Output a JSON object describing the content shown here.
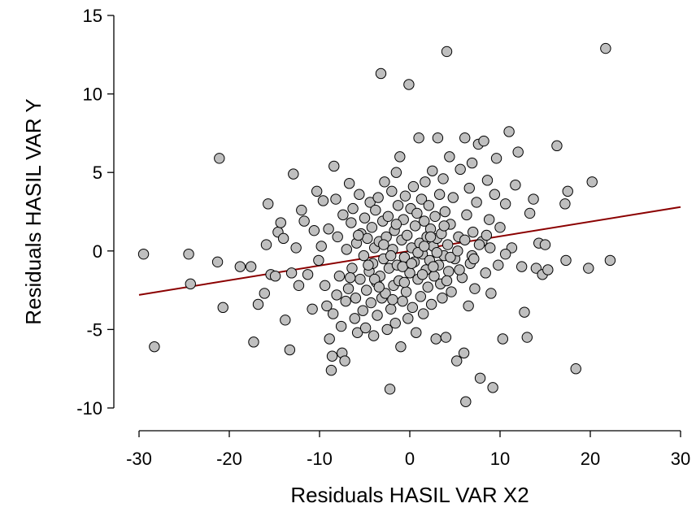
{
  "chart_data": {
    "type": "scatter",
    "title": "",
    "xlabel": "Residuals HASIL VAR X2",
    "ylabel": "Residuals HASIL VAR Y",
    "xlim": [
      -30,
      30
    ],
    "ylim": [
      -10,
      15
    ],
    "xticks": [
      -30,
      -20,
      -10,
      0,
      10,
      20,
      30
    ],
    "yticks": [
      -10,
      -5,
      0,
      5,
      10,
      15
    ],
    "grid": false,
    "legend": "none",
    "colors": {
      "point_fill": "#bfbfbf",
      "point_stroke": "#000000",
      "line": "#8b0000"
    },
    "regression_line": {
      "x": [
        -30,
        30
      ],
      "y": [
        -2.8,
        2.8
      ]
    },
    "points": [
      [
        -29.5,
        -0.2
      ],
      [
        -28.3,
        -6.1
      ],
      [
        -24.5,
        -0.2
      ],
      [
        -24.3,
        -2.1
      ],
      [
        -21.3,
        -0.7
      ],
      [
        -21.1,
        5.9
      ],
      [
        -20.7,
        -3.6
      ],
      [
        -18.8,
        -1.0
      ],
      [
        -17.6,
        -1.0
      ],
      [
        -17.3,
        -5.8
      ],
      [
        -16.8,
        -3.4
      ],
      [
        -16.1,
        -2.7
      ],
      [
        -15.9,
        0.4
      ],
      [
        -15.7,
        3.0
      ],
      [
        -15.4,
        -1.5
      ],
      [
        -14.9,
        -1.6
      ],
      [
        -14.6,
        1.2
      ],
      [
        -14.3,
        1.8
      ],
      [
        -14.0,
        0.8
      ],
      [
        -13.8,
        -4.4
      ],
      [
        -13.3,
        -6.3
      ],
      [
        -13.1,
        -1.4
      ],
      [
        -12.9,
        4.9
      ],
      [
        -12.6,
        0.2
      ],
      [
        -12.3,
        -2.2
      ],
      [
        -12.0,
        2.6
      ],
      [
        -11.7,
        1.9
      ],
      [
        -11.3,
        -1.5
      ],
      [
        -10.8,
        -3.7
      ],
      [
        -10.6,
        1.3
      ],
      [
        -10.3,
        3.8
      ],
      [
        -10.1,
        -0.6
      ],
      [
        -9.8,
        0.3
      ],
      [
        -9.6,
        3.2
      ],
      [
        -9.4,
        -2.2
      ],
      [
        -9.2,
        -3.5
      ],
      [
        -9.0,
        1.4
      ],
      [
        -8.9,
        -5.6
      ],
      [
        -8.7,
        -7.6
      ],
      [
        -8.6,
        -6.7
      ],
      [
        -8.5,
        -4.0
      ],
      [
        -8.4,
        5.4
      ],
      [
        -8.2,
        3.3
      ],
      [
        -8.1,
        -2.8
      ],
      [
        -8.0,
        0.9
      ],
      [
        -7.8,
        -1.6
      ],
      [
        -7.6,
        -4.8
      ],
      [
        -7.5,
        -6.5
      ],
      [
        -7.4,
        2.3
      ],
      [
        -7.2,
        -7.0
      ],
      [
        -7.1,
        -3.2
      ],
      [
        -7.0,
        0.1
      ],
      [
        -6.8,
        -2.4
      ],
      [
        -6.7,
        4.3
      ],
      [
        -6.5,
        1.8
      ],
      [
        -6.4,
        -1.1
      ],
      [
        -6.3,
        2.7
      ],
      [
        -6.1,
        -4.3
      ],
      [
        -6.0,
        -3.0
      ],
      [
        -5.9,
        0.5
      ],
      [
        -5.8,
        -5.2
      ],
      [
        -5.6,
        3.6
      ],
      [
        -5.5,
        -1.8
      ],
      [
        -5.4,
        1.1
      ],
      [
        -5.2,
        -3.8
      ],
      [
        -5.1,
        -0.3
      ],
      [
        -5.0,
        2.1
      ],
      [
        -4.9,
        -4.9
      ],
      [
        -4.8,
        -2.5
      ],
      [
        -4.7,
        0.8
      ],
      [
        -4.5,
        -1.3
      ],
      [
        -4.4,
        3.1
      ],
      [
        -4.3,
        -3.3
      ],
      [
        -4.2,
        1.5
      ],
      [
        -4.1,
        -0.8
      ],
      [
        -4.0,
        -5.4
      ],
      [
        -3.9,
        0.2
      ],
      [
        -3.8,
        2.6
      ],
      [
        -3.7,
        -2.0
      ],
      [
        -3.6,
        -4.1
      ],
      [
        -3.5,
        3.4
      ],
      [
        -3.4,
        0.6
      ],
      [
        -3.3,
        -1.6
      ],
      [
        -3.2,
        11.3
      ],
      [
        -3.1,
        -3.0
      ],
      [
        -3.0,
        1.9
      ],
      [
        -2.9,
        -0.5
      ],
      [
        -2.8,
        4.4
      ],
      [
        -2.7,
        -2.7
      ],
      [
        -2.6,
        0.9
      ],
      [
        -2.5,
        -5.0
      ],
      [
        -2.4,
        2.2
      ],
      [
        -2.3,
        -1.1
      ],
      [
        -2.2,
        -8.8
      ],
      [
        -2.1,
        -3.7
      ],
      [
        -2.0,
        3.8
      ],
      [
        -1.9,
        0.1
      ],
      [
        -1.8,
        -2.2
      ],
      [
        -1.7,
        1.3
      ],
      [
        -1.6,
        -4.6
      ],
      [
        -1.5,
        5.0
      ],
      [
        -1.4,
        -0.9
      ],
      [
        -1.3,
        2.9
      ],
      [
        -1.2,
        -1.9
      ],
      [
        -1.1,
        6.0
      ],
      [
        -1.0,
        -6.1
      ],
      [
        -0.9,
        0.7
      ],
      [
        -0.8,
        -3.2
      ],
      [
        -0.7,
        2.0
      ],
      [
        -0.6,
        -0.4
      ],
      [
        -0.5,
        3.5
      ],
      [
        -0.4,
        -2.6
      ],
      [
        -0.3,
        1.0
      ],
      [
        -0.2,
        -4.3
      ],
      [
        -0.1,
        10.6
      ],
      [
        0.0,
        -1.4
      ],
      [
        0.1,
        2.7
      ],
      [
        0.2,
        0.2
      ],
      [
        0.3,
        -3.6
      ],
      [
        0.4,
        4.1
      ],
      [
        0.5,
        -0.7
      ],
      [
        0.6,
        1.6
      ],
      [
        0.7,
        -5.2
      ],
      [
        0.8,
        2.4
      ],
      [
        0.9,
        -1.8
      ],
      [
        1.0,
        7.2
      ],
      [
        1.1,
        0.5
      ],
      [
        1.2,
        -2.9
      ],
      [
        1.3,
        3.3
      ],
      [
        1.4,
        -0.2
      ],
      [
        1.5,
        -4.0
      ],
      [
        1.6,
        1.9
      ],
      [
        1.7,
        4.4
      ],
      [
        1.8,
        -1.2
      ],
      [
        1.9,
        0.9
      ],
      [
        2.0,
        -2.3
      ],
      [
        2.1,
        2.9
      ],
      [
        2.2,
        -0.6
      ],
      [
        2.3,
        1.4
      ],
      [
        2.4,
        -3.4
      ],
      [
        2.5,
        5.1
      ],
      [
        2.6,
        0.3
      ],
      [
        2.7,
        -1.6
      ],
      [
        2.8,
        2.2
      ],
      [
        2.9,
        -5.6
      ],
      [
        3.0,
        0.8
      ],
      [
        3.1,
        7.2
      ],
      [
        3.2,
        -0.9
      ],
      [
        3.3,
        3.6
      ],
      [
        3.4,
        -2.1
      ],
      [
        3.5,
        1.1
      ],
      [
        3.6,
        -3.0
      ],
      [
        3.7,
        4.6
      ],
      [
        3.8,
        -0.3
      ],
      [
        3.9,
        2.5
      ],
      [
        4.0,
        -5.5
      ],
      [
        4.1,
        12.7
      ],
      [
        4.2,
        0.4
      ],
      [
        4.3,
        -1.3
      ],
      [
        4.4,
        6.0
      ],
      [
        4.5,
        1.7
      ],
      [
        4.6,
        -2.6
      ],
      [
        4.8,
        3.4
      ],
      [
        5.0,
        -0.5
      ],
      [
        5.2,
        -7.0
      ],
      [
        5.4,
        0.9
      ],
      [
        5.6,
        5.2
      ],
      [
        5.8,
        -1.7
      ],
      [
        6.0,
        -6.5
      ],
      [
        6.1,
        7.2
      ],
      [
        6.2,
        -9.6
      ],
      [
        6.3,
        2.3
      ],
      [
        6.5,
        -3.5
      ],
      [
        6.6,
        4.0
      ],
      [
        6.7,
        -0.8
      ],
      [
        6.9,
        5.6
      ],
      [
        7.0,
        1.2
      ],
      [
        7.2,
        -2.4
      ],
      [
        7.4,
        3.1
      ],
      [
        7.6,
        6.8
      ],
      [
        7.8,
        -8.1
      ],
      [
        8.0,
        0.6
      ],
      [
        8.2,
        7.0
      ],
      [
        8.4,
        -1.4
      ],
      [
        8.6,
        4.5
      ],
      [
        8.8,
        2.0
      ],
      [
        9.0,
        -2.7
      ],
      [
        9.2,
        -8.7
      ],
      [
        9.4,
        3.6
      ],
      [
        9.6,
        5.9
      ],
      [
        9.8,
        -0.9
      ],
      [
        10.0,
        1.5
      ],
      [
        10.3,
        -5.6
      ],
      [
        10.6,
        3.0
      ],
      [
        11.0,
        7.6
      ],
      [
        11.3,
        0.2
      ],
      [
        11.7,
        4.2
      ],
      [
        12.0,
        6.3
      ],
      [
        12.4,
        -1.0
      ],
      [
        12.7,
        -3.9
      ],
      [
        13.0,
        -5.5
      ],
      [
        13.3,
        2.4
      ],
      [
        13.7,
        3.3
      ],
      [
        14.0,
        -1.1
      ],
      [
        14.3,
        0.5
      ],
      [
        14.7,
        -1.5
      ],
      [
        15.0,
        0.4
      ],
      [
        15.3,
        -1.2
      ],
      [
        16.3,
        6.7
      ],
      [
        17.2,
        3.0
      ],
      [
        17.5,
        3.8
      ],
      [
        17.3,
        -0.6
      ],
      [
        18.4,
        -7.5
      ],
      [
        19.8,
        -1.1
      ],
      [
        20.2,
        4.4
      ],
      [
        21.7,
        12.9
      ],
      [
        22.2,
        -0.6
      ],
      [
        -6.6,
        -1.7
      ],
      [
        -5.7,
        1.0
      ],
      [
        -4.6,
        -0.9
      ],
      [
        -3.9,
        -1.8
      ],
      [
        -2.9,
        0.4
      ],
      [
        -2.1,
        -0.3
      ],
      [
        -1.5,
        1.7
      ],
      [
        -0.8,
        -1.0
      ],
      [
        0.2,
        -0.8
      ],
      [
        0.9,
        -0.1
      ],
      [
        1.6,
        0.3
      ],
      [
        2.3,
        0.9
      ],
      [
        3.0,
        -0.1
      ],
      [
        3.8,
        1.6
      ],
      [
        4.5,
        -0.4
      ],
      [
        5.3,
        0.0
      ],
      [
        6.1,
        0.7
      ],
      [
        6.9,
        -0.3
      ],
      [
        7.7,
        0.4
      ],
      [
        8.5,
        1.0
      ],
      [
        -3.4,
        -2.3
      ],
      [
        -1.9,
        -3.1
      ],
      [
        -0.6,
        -2.0
      ],
      [
        1.4,
        -1.5
      ],
      [
        2.6,
        -1.0
      ],
      [
        4.1,
        -1.9
      ],
      [
        5.5,
        -1.2
      ],
      [
        7.1,
        -0.5
      ],
      [
        8.9,
        0.2
      ],
      [
        10.6,
        -0.2
      ]
    ]
  }
}
